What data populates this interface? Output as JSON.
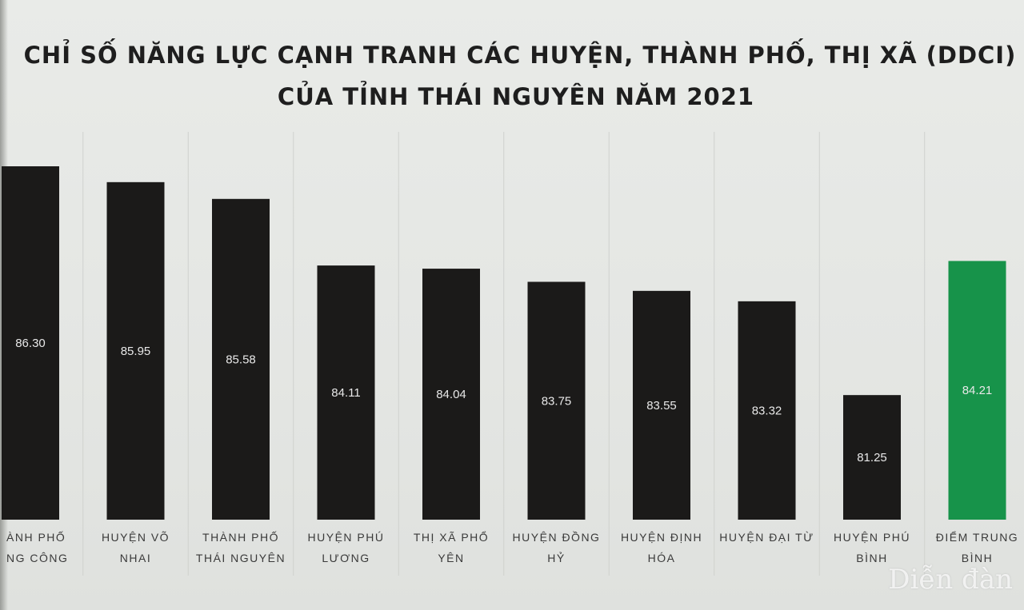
{
  "chart_data": {
    "type": "bar",
    "title": "CHỈ SỐ NĂNG LỰC CẠNH TRANH CÁC HUYỆN, THÀNH PHỐ, THỊ XÃ (DDCI)",
    "subtitle": "CỦA TỈNH THÁI NGUYÊN NĂM 2021",
    "categories": [
      [
        "ÀNH PHỐ",
        "NG CÔNG"
      ],
      [
        "HUYỆN VÕ",
        "NHAI"
      ],
      [
        "THÀNH PHỐ",
        "THÁI NGUYÊN"
      ],
      [
        "HUYỆN PHÚ",
        "LƯƠNG"
      ],
      [
        "THỊ XÃ PHỔ",
        "YÊN"
      ],
      [
        "HUYỆN ĐỒNG",
        "HỶ"
      ],
      [
        "HUYỆN ĐỊNH",
        "HÓA"
      ],
      [
        "HUYỆN ĐẠI TỪ"
      ],
      [
        "HUYỆN PHÚ",
        "BÌNH"
      ],
      [
        "ĐIỂM TRUNG",
        "BÌNH"
      ]
    ],
    "values": [
      86.3,
      85.95,
      85.58,
      84.11,
      84.04,
      83.75,
      83.55,
      83.32,
      81.25,
      84.21
    ],
    "value_labels": [
      "86.30",
      "85.95",
      "85.58",
      "84.11",
      "84.04",
      "83.75",
      "83.55",
      "83.32",
      "81.25",
      "84.21"
    ],
    "colors": [
      "#1b1a19",
      "#1b1a19",
      "#1b1a19",
      "#1b1a19",
      "#1b1a19",
      "#1b1a19",
      "#1b1a19",
      "#1b1a19",
      "#1b1a19",
      "#17934a"
    ],
    "xlabel": "",
    "ylabel": "",
    "grid": "vertical separators"
  },
  "watermark": "Diễn đàn"
}
